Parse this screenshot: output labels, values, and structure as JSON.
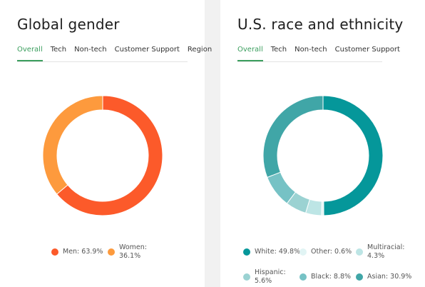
{
  "chart_data": [
    {
      "type": "pie",
      "title": "Global gender",
      "tabs": [
        "Overall",
        "Tech",
        "Non-tech",
        "Customer Support",
        "Region"
      ],
      "active_tab": "Overall",
      "categories": [
        "Men",
        "Women"
      ],
      "values": [
        63.9,
        36.1
      ],
      "colors": [
        "#fc5a2a",
        "#fd9a3d"
      ],
      "legend_labels": [
        "Men: 63.9%",
        "Women: 36.1%"
      ]
    },
    {
      "type": "pie",
      "title": "U.S. race and ethnicity",
      "tabs": [
        "Overall",
        "Tech",
        "Non-tech",
        "Customer Support"
      ],
      "active_tab": "Overall",
      "categories": [
        "White",
        "Asian",
        "Black",
        "Hispanic",
        "Multiracial",
        "Other"
      ],
      "values": [
        49.8,
        30.9,
        8.8,
        5.6,
        4.3,
        0.6
      ],
      "colors": [
        "#05979a",
        "#40a6a7",
        "#76c2c5",
        "#9bd2d2",
        "#bde5e5",
        "#e1f4f4"
      ],
      "legend_labels": [
        "White: 49.8%",
        "Other: 0.6%",
        "Multiracial: 4.3%",
        "Hispanic: 5.6%",
        "Black: 8.8%",
        "Asian: 30.9%"
      ]
    }
  ]
}
